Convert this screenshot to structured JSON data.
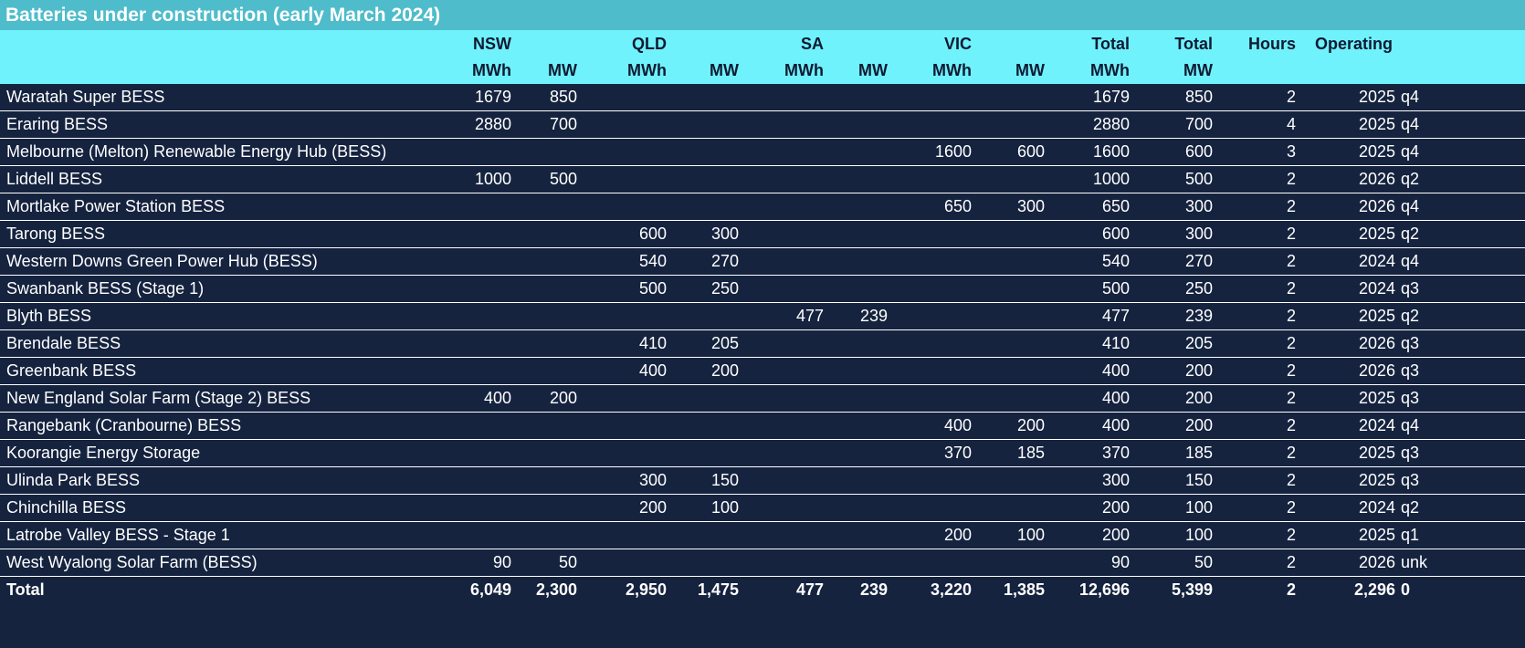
{
  "title": "Batteries under construction (early March 2024)",
  "headers": {
    "row1": {
      "nsw": "NSW",
      "qld": "QLD",
      "sa": "SA",
      "vic": "VIC",
      "total1": "Total",
      "total2": "Total",
      "hours": "Hours",
      "operating": "Operating"
    },
    "row2": {
      "nsw_mwh": "MWh",
      "nsw_mw": "MW",
      "qld_mwh": "MWh",
      "qld_mw": "MW",
      "sa_mwh": "MWh",
      "sa_mw": "MW",
      "vic_mwh": "MWh",
      "vic_mw": "MW",
      "total_mwh": "MWh",
      "total_mw": "MW"
    }
  },
  "rows": [
    {
      "name": "Waratah Super BESS",
      "nsw_mwh": "1679",
      "nsw_mw": "850",
      "qld_mwh": "",
      "qld_mw": "",
      "sa_mwh": "",
      "sa_mw": "",
      "vic_mwh": "",
      "vic_mw": "",
      "total_mwh": "1679",
      "total_mw": "850",
      "hours": "2",
      "year": "2025",
      "quarter": "q4"
    },
    {
      "name": "Eraring BESS",
      "nsw_mwh": "2880",
      "nsw_mw": "700",
      "qld_mwh": "",
      "qld_mw": "",
      "sa_mwh": "",
      "sa_mw": "",
      "vic_mwh": "",
      "vic_mw": "",
      "total_mwh": "2880",
      "total_mw": "700",
      "hours": "4",
      "year": "2025",
      "quarter": "q4"
    },
    {
      "name": "Melbourne (Melton) Renewable Energy Hub (BESS)",
      "nsw_mwh": "",
      "nsw_mw": "",
      "qld_mwh": "",
      "qld_mw": "",
      "sa_mwh": "",
      "sa_mw": "",
      "vic_mwh": "1600",
      "vic_mw": "600",
      "total_mwh": "1600",
      "total_mw": "600",
      "hours": "3",
      "year": "2025",
      "quarter": "q4"
    },
    {
      "name": "Liddell BESS",
      "nsw_mwh": "1000",
      "nsw_mw": "500",
      "qld_mwh": "",
      "qld_mw": "",
      "sa_mwh": "",
      "sa_mw": "",
      "vic_mwh": "",
      "vic_mw": "",
      "total_mwh": "1000",
      "total_mw": "500",
      "hours": "2",
      "year": "2026",
      "quarter": "q2"
    },
    {
      "name": "Mortlake Power Station BESS",
      "nsw_mwh": "",
      "nsw_mw": "",
      "qld_mwh": "",
      "qld_mw": "",
      "sa_mwh": "",
      "sa_mw": "",
      "vic_mwh": "650",
      "vic_mw": "300",
      "total_mwh": "650",
      "total_mw": "300",
      "hours": "2",
      "year": "2026",
      "quarter": "q4"
    },
    {
      "name": "Tarong BESS",
      "nsw_mwh": "",
      "nsw_mw": "",
      "qld_mwh": "600",
      "qld_mw": "300",
      "sa_mwh": "",
      "sa_mw": "",
      "vic_mwh": "",
      "vic_mw": "",
      "total_mwh": "600",
      "total_mw": "300",
      "hours": "2",
      "year": "2025",
      "quarter": "q2"
    },
    {
      "name": "Western Downs Green Power Hub (BESS)",
      "nsw_mwh": "",
      "nsw_mw": "",
      "qld_mwh": "540",
      "qld_mw": "270",
      "sa_mwh": "",
      "sa_mw": "",
      "vic_mwh": "",
      "vic_mw": "",
      "total_mwh": "540",
      "total_mw": "270",
      "hours": "2",
      "year": "2024",
      "quarter": "q4"
    },
    {
      "name": "Swanbank BESS (Stage 1)",
      "nsw_mwh": "",
      "nsw_mw": "",
      "qld_mwh": "500",
      "qld_mw": "250",
      "sa_mwh": "",
      "sa_mw": "",
      "vic_mwh": "",
      "vic_mw": "",
      "total_mwh": "500",
      "total_mw": "250",
      "hours": "2",
      "year": "2024",
      "quarter": "q3"
    },
    {
      "name": "Blyth BESS",
      "nsw_mwh": "",
      "nsw_mw": "",
      "qld_mwh": "",
      "qld_mw": "",
      "sa_mwh": "477",
      "sa_mw": "239",
      "vic_mwh": "",
      "vic_mw": "",
      "total_mwh": "477",
      "total_mw": "239",
      "hours": "2",
      "year": "2025",
      "quarter": "q2"
    },
    {
      "name": "Brendale BESS",
      "nsw_mwh": "",
      "nsw_mw": "",
      "qld_mwh": "410",
      "qld_mw": "205",
      "sa_mwh": "",
      "sa_mw": "",
      "vic_mwh": "",
      "vic_mw": "",
      "total_mwh": "410",
      "total_mw": "205",
      "hours": "2",
      "year": "2026",
      "quarter": "q3"
    },
    {
      "name": "Greenbank BESS",
      "nsw_mwh": "",
      "nsw_mw": "",
      "qld_mwh": "400",
      "qld_mw": "200",
      "sa_mwh": "",
      "sa_mw": "",
      "vic_mwh": "",
      "vic_mw": "",
      "total_mwh": "400",
      "total_mw": "200",
      "hours": "2",
      "year": "2026",
      "quarter": "q3"
    },
    {
      "name": "New England Solar Farm (Stage 2) BESS",
      "nsw_mwh": "400",
      "nsw_mw": "200",
      "qld_mwh": "",
      "qld_mw": "",
      "sa_mwh": "",
      "sa_mw": "",
      "vic_mwh": "",
      "vic_mw": "",
      "total_mwh": "400",
      "total_mw": "200",
      "hours": "2",
      "year": "2025",
      "quarter": "q3"
    },
    {
      "name": "Rangebank (Cranbourne) BESS",
      "nsw_mwh": "",
      "nsw_mw": "",
      "qld_mwh": "",
      "qld_mw": "",
      "sa_mwh": "",
      "sa_mw": "",
      "vic_mwh": "400",
      "vic_mw": "200",
      "total_mwh": "400",
      "total_mw": "200",
      "hours": "2",
      "year": "2024",
      "quarter": "q4"
    },
    {
      "name": "Koorangie Energy Storage",
      "nsw_mwh": "",
      "nsw_mw": "",
      "qld_mwh": "",
      "qld_mw": "",
      "sa_mwh": "",
      "sa_mw": "",
      "vic_mwh": "370",
      "vic_mw": "185",
      "total_mwh": "370",
      "total_mw": "185",
      "hours": "2",
      "year": "2025",
      "quarter": "q3"
    },
    {
      "name": "Ulinda Park BESS",
      "nsw_mwh": "",
      "nsw_mw": "",
      "qld_mwh": "300",
      "qld_mw": "150",
      "sa_mwh": "",
      "sa_mw": "",
      "vic_mwh": "",
      "vic_mw": "",
      "total_mwh": "300",
      "total_mw": "150",
      "hours": "2",
      "year": "2025",
      "quarter": "q3"
    },
    {
      "name": "Chinchilla BESS",
      "nsw_mwh": "",
      "nsw_mw": "",
      "qld_mwh": "200",
      "qld_mw": "100",
      "sa_mwh": "",
      "sa_mw": "",
      "vic_mwh": "",
      "vic_mw": "",
      "total_mwh": "200",
      "total_mw": "100",
      "hours": "2",
      "year": "2024",
      "quarter": "q2"
    },
    {
      "name": "Latrobe Valley BESS - Stage 1",
      "nsw_mwh": "",
      "nsw_mw": "",
      "qld_mwh": "",
      "qld_mw": "",
      "sa_mwh": "",
      "sa_mw": "",
      "vic_mwh": "200",
      "vic_mw": "100",
      "total_mwh": "200",
      "total_mw": "100",
      "hours": "2",
      "year": "2025",
      "quarter": "q1"
    },
    {
      "name": "West Wyalong Solar Farm (BESS)",
      "nsw_mwh": "90",
      "nsw_mw": "50",
      "qld_mwh": "",
      "qld_mw": "",
      "sa_mwh": "",
      "sa_mw": "",
      "vic_mwh": "",
      "vic_mw": "",
      "total_mwh": "90",
      "total_mw": "50",
      "hours": "2",
      "year": "2026",
      "quarter": "unk"
    }
  ],
  "total": {
    "name": "Total",
    "nsw_mwh": "6,049",
    "nsw_mw": "2,300",
    "qld_mwh": "2,950",
    "qld_mw": "1,475",
    "sa_mwh": "477",
    "sa_mw": "239",
    "vic_mwh": "3,220",
    "vic_mw": "1,385",
    "total_mwh": "12,696",
    "total_mw": "5,399",
    "hours": "2",
    "year": "2,296",
    "quarter": "0"
  },
  "colors": {
    "title_bg": "#4fbccb",
    "header_bg": "#6ff2fb",
    "body_bg": "#15233f",
    "text_light": "#ffffff",
    "text_dark": "#0f1a33"
  }
}
